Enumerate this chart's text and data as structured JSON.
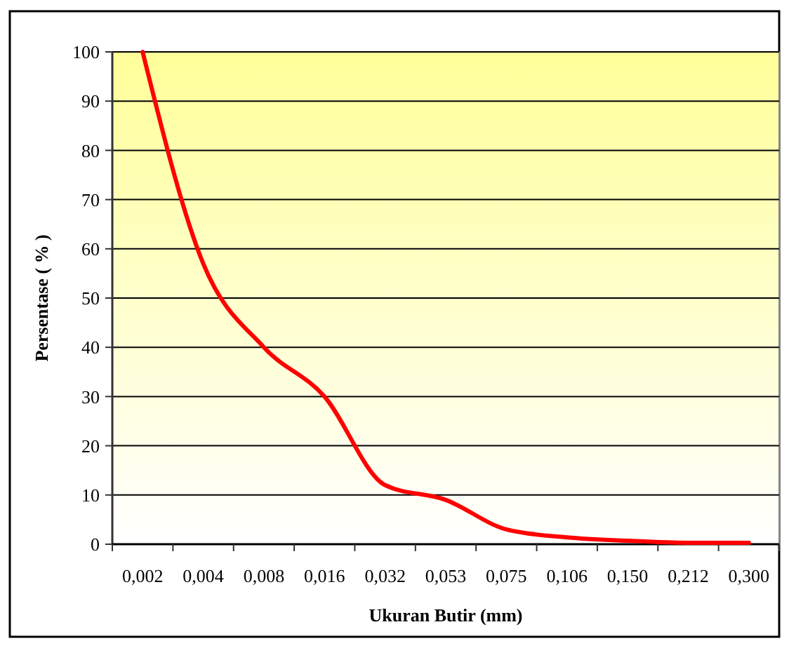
{
  "chart_data": {
    "type": "line",
    "xlabel": "Ukuran Butir (mm)",
    "ylabel": "Persentase ( % )",
    "categories": [
      "0,002",
      "0,004",
      "0,008",
      "0,016",
      "0,032",
      "0,053",
      "0,075",
      "0,106",
      "0,150",
      "0,212",
      "0,300"
    ],
    "series": [
      {
        "color": "#ff0000",
        "values": [
          100,
          57,
          40,
          30,
          12,
          9,
          3,
          1.4,
          0.7,
          0.3,
          0.3
        ]
      }
    ],
    "ylim": [
      0,
      100
    ],
    "yticks": [
      0,
      10,
      20,
      30,
      40,
      50,
      60,
      70,
      80,
      90,
      100
    ],
    "grid": "y",
    "marker": "none",
    "line_style": "solid"
  }
}
